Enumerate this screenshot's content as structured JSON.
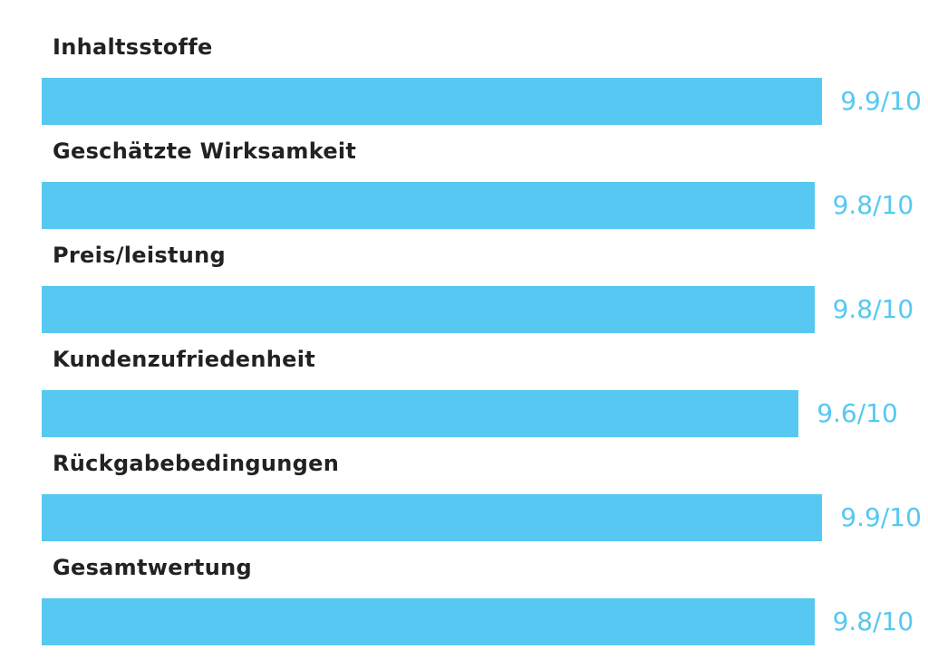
{
  "chart_data": {
    "type": "bar",
    "orientation": "horizontal",
    "categories": [
      "Inhaltsstoffe",
      "Geschätzte Wirksamkeit",
      "Preis/leistung",
      "Kundenzufriedenheit",
      "Rückgabebedingungen",
      "Gesamtwertung"
    ],
    "values": [
      9.9,
      9.8,
      9.8,
      9.6,
      9.9,
      9.8
    ],
    "value_labels": [
      "9.9/10",
      "9.8/10",
      "9.8/10",
      "9.6/10",
      "9.9/10",
      "9.8/10"
    ],
    "xlim": [
      0,
      10
    ],
    "title": "",
    "xlabel": "",
    "ylabel": "",
    "grid": false,
    "legend": "none",
    "colors": {
      "bar": "#56c8f1",
      "value_text": "#56c8f1",
      "label_text": "#222222"
    }
  }
}
